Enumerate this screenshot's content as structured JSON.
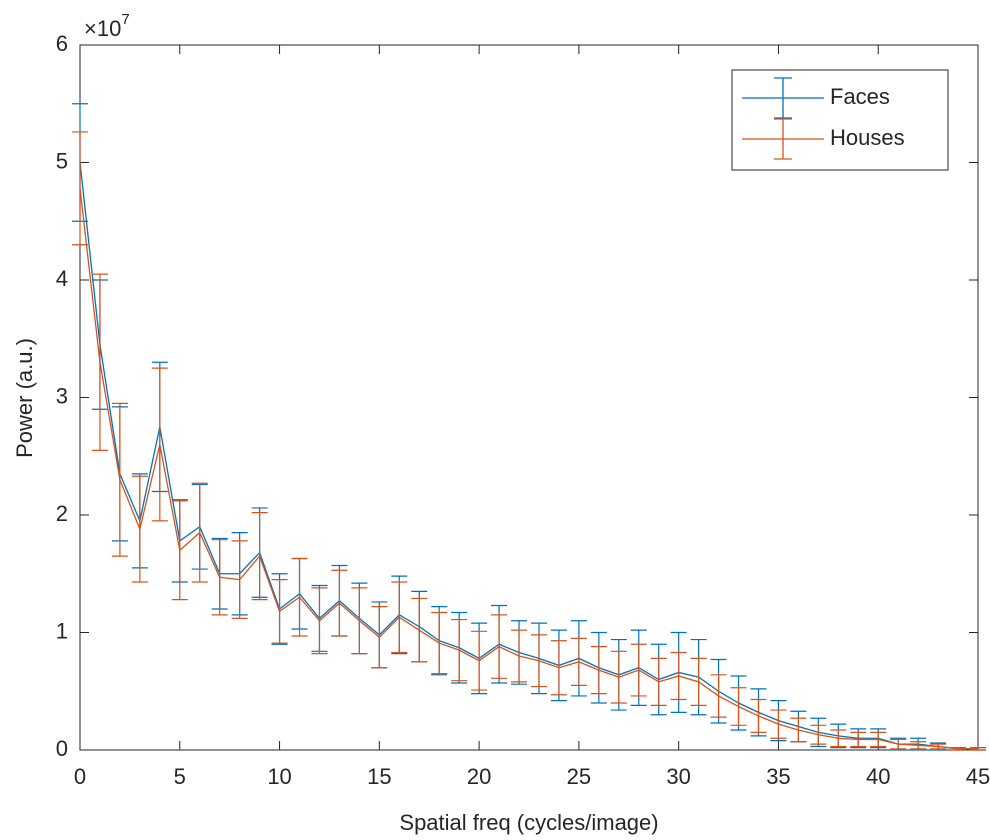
{
  "chart_data": {
    "type": "errorbar",
    "xlabel": "Spatial freq (cycles/image)",
    "ylabel": "Power (a.u.)",
    "y_multiplier_base": "×10",
    "y_multiplier_exponent": "7",
    "x": [
      0,
      1,
      2,
      3,
      4,
      5,
      6,
      7,
      8,
      9,
      10,
      11,
      12,
      13,
      14,
      15,
      16,
      17,
      18,
      19,
      20,
      21,
      22,
      23,
      24,
      25,
      26,
      27,
      28,
      29,
      30,
      31,
      32,
      33,
      34,
      35,
      36,
      37,
      38,
      39,
      40,
      41,
      42,
      43,
      44,
      45
    ],
    "series": [
      {
        "name": "Faces",
        "color": "#0072BD",
        "values": [
          5.0,
          3.45,
          2.35,
          1.95,
          2.75,
          1.78,
          1.9,
          1.5,
          1.5,
          1.68,
          1.2,
          1.33,
          1.12,
          1.27,
          1.12,
          0.98,
          1.15,
          1.05,
          0.93,
          0.87,
          0.78,
          0.9,
          0.83,
          0.78,
          0.72,
          0.78,
          0.7,
          0.64,
          0.7,
          0.6,
          0.66,
          0.62,
          0.5,
          0.4,
          0.32,
          0.25,
          0.2,
          0.15,
          0.12,
          0.1,
          0.1,
          0.05,
          0.05,
          0.03,
          0.01,
          0.01
        ],
        "errors": [
          0.5,
          0.55,
          0.57,
          0.4,
          0.55,
          0.35,
          0.36,
          0.3,
          0.35,
          0.38,
          0.3,
          0.3,
          0.28,
          0.3,
          0.3,
          0.28,
          0.33,
          0.3,
          0.29,
          0.3,
          0.3,
          0.33,
          0.27,
          0.3,
          0.3,
          0.32,
          0.3,
          0.3,
          0.32,
          0.3,
          0.34,
          0.32,
          0.27,
          0.23,
          0.2,
          0.17,
          0.13,
          0.12,
          0.1,
          0.08,
          0.08,
          0.05,
          0.05,
          0.03,
          0.01,
          0.01
        ]
      },
      {
        "name": "Houses",
        "color": "#D95319",
        "values": [
          4.78,
          3.3,
          2.3,
          1.88,
          2.6,
          1.7,
          1.85,
          1.47,
          1.45,
          1.65,
          1.18,
          1.3,
          1.1,
          1.25,
          1.1,
          0.96,
          1.13,
          1.02,
          0.91,
          0.85,
          0.76,
          0.88,
          0.8,
          0.76,
          0.7,
          0.75,
          0.68,
          0.62,
          0.68,
          0.58,
          0.63,
          0.58,
          0.46,
          0.37,
          0.29,
          0.22,
          0.17,
          0.13,
          0.1,
          0.09,
          0.09,
          0.05,
          0.04,
          0.03,
          0.01,
          0.01
        ],
        "errors": [
          0.48,
          0.75,
          0.65,
          0.45,
          0.65,
          0.42,
          0.42,
          0.32,
          0.33,
          0.37,
          0.27,
          0.33,
          0.28,
          0.28,
          0.28,
          0.26,
          0.3,
          0.27,
          0.26,
          0.26,
          0.25,
          0.27,
          0.22,
          0.22,
          0.23,
          0.2,
          0.2,
          0.22,
          0.22,
          0.2,
          0.2,
          0.2,
          0.18,
          0.16,
          0.14,
          0.12,
          0.1,
          0.08,
          0.07,
          0.06,
          0.06,
          0.04,
          0.03,
          0.02,
          0.01,
          0.01
        ]
      }
    ],
    "xlim": [
      0,
      45
    ],
    "xticks": [
      0,
      5,
      10,
      15,
      20,
      25,
      30,
      35,
      40,
      45
    ],
    "ylim": [
      0,
      6
    ],
    "yticks": [
      0,
      1,
      2,
      3,
      4,
      5,
      6
    ],
    "legend": "upper right"
  }
}
